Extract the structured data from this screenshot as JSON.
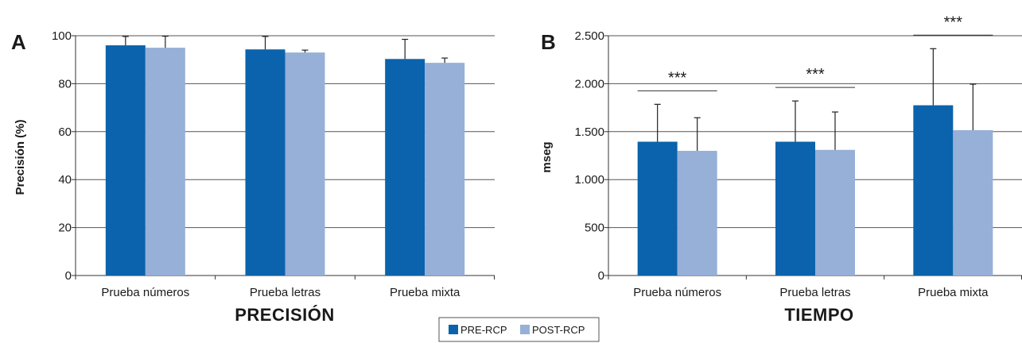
{
  "legend": {
    "items": [
      {
        "label": "PRE-RCP",
        "color": "#0A63AC"
      },
      {
        "label": "POST-RCP",
        "color": "#96B0D8"
      }
    ]
  },
  "chart_data": [
    {
      "type": "bar",
      "panel_label": "A",
      "title": "PRECISIÓN",
      "xlabel": "PRECISIÓN",
      "ylabel": "Precisión (%)",
      "ylim": [
        0,
        100
      ],
      "yticks": [
        0,
        20,
        40,
        60,
        80,
        100
      ],
      "ytick_labels": [
        "0",
        "20",
        "40",
        "60",
        "80",
        "100"
      ],
      "grid": true,
      "categories": [
        "Prueba números",
        "Prueba letras",
        "Prueba mixta"
      ],
      "series": [
        {
          "name": "PRE-RCP",
          "color": "#0A63AC",
          "values": [
            96,
            94.3,
            90.3
          ],
          "error": [
            3.7,
            5.4,
            8.2
          ]
        },
        {
          "name": "POST-RCP",
          "color": "#96B0D8",
          "values": [
            95,
            93,
            88.7
          ],
          "error": [
            4.8,
            1,
            2
          ]
        }
      ],
      "significance": []
    },
    {
      "type": "bar",
      "panel_label": "B",
      "title": "TIEMPO",
      "xlabel": "TIEMPO",
      "ylabel": "mseg",
      "ylim": [
        0,
        2500
      ],
      "yticks": [
        0,
        500,
        1000,
        1500,
        2000,
        2500
      ],
      "ytick_labels": [
        "0",
        "500",
        "1.000",
        "1.500",
        "2.000",
        "2.500"
      ],
      "grid": true,
      "categories": [
        "Prueba números",
        "Prueba letras",
        "Prueba mixta"
      ],
      "series": [
        {
          "name": "PRE-RCP",
          "color": "#0A63AC",
          "values": [
            1395,
            1395,
            1775
          ],
          "error": [
            390,
            425,
            590
          ]
        },
        {
          "name": "POST-RCP",
          "color": "#96B0D8",
          "values": [
            1300,
            1310,
            1515
          ],
          "error": [
            345,
            395,
            480
          ]
        }
      ],
      "significance": [
        "***",
        "***",
        "***"
      ]
    }
  ]
}
